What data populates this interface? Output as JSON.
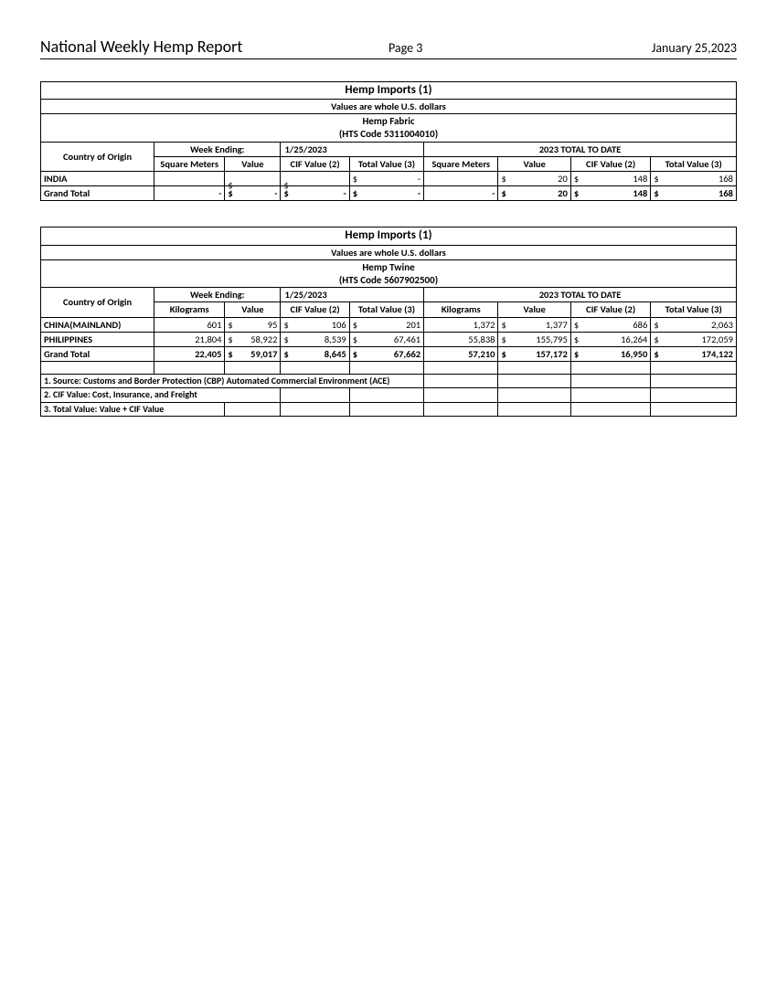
{
  "header": {
    "title": "National Weekly Hemp Report",
    "page": "Page 3",
    "date": "January 25,2023"
  },
  "common": {
    "imports_title": "Hemp Imports (1)",
    "values_note": "Values are whole U.S. dollars",
    "country_label": "Country of Origin",
    "week_ending_label": "Week Ending:",
    "week_ending_date": "1/25/2023",
    "ytd_label": "2023 TOTAL TO DATE",
    "value_label": "Value",
    "cif_label": "CIF Value (2)",
    "total_label": "Total Value (3)",
    "grand_total_label": "Grand Total"
  },
  "fabric": {
    "section_title": "Hemp Fabric",
    "section_code": "(HTS Code 5311004010)",
    "qty_label": "Square Meters",
    "rows": [
      {
        "country": "INDIA",
        "qty": "",
        "val": "",
        "cif": "",
        "tot": "-",
        "qty2": "",
        "val2": "20",
        "cif2": "148",
        "tot2": "168"
      }
    ],
    "grand": {
      "qty": "-",
      "val": "-",
      "cif": "-",
      "tot": "-",
      "qty2": "-",
      "val2": "20",
      "cif2": "148",
      "tot2": "168"
    }
  },
  "twine": {
    "section_title": "Hemp Twine",
    "section_code": "(HTS Code 5607902500)",
    "qty_label": "Kilograms",
    "rows": [
      {
        "country": "CHINA(MAINLAND)",
        "qty": "601",
        "val": "95",
        "cif": "106",
        "tot": "201",
        "qty2": "1,372",
        "val2": "1,377",
        "cif2": "686",
        "tot2": "2,063"
      },
      {
        "country": "PHILIPPINES",
        "qty": "21,804",
        "val": "58,922",
        "cif": "8,539",
        "tot": "67,461",
        "qty2": "55,838",
        "val2": "155,795",
        "cif2": "16,264",
        "tot2": "172,059"
      }
    ],
    "grand": {
      "qty": "22,405",
      "val": "59,017",
      "cif": "8,645",
      "tot": "67,662",
      "qty2": "57,210",
      "val2": "157,172",
      "cif2": "16,950",
      "tot2": "174,122"
    }
  },
  "notes": [
    "1. Source: Customs and Border Protection (CBP) Automated Commercial Environment (ACE)",
    "2. CIF Value: Cost, Insurance, and Freight",
    "3. Total Value: Value + CIF Value"
  ]
}
